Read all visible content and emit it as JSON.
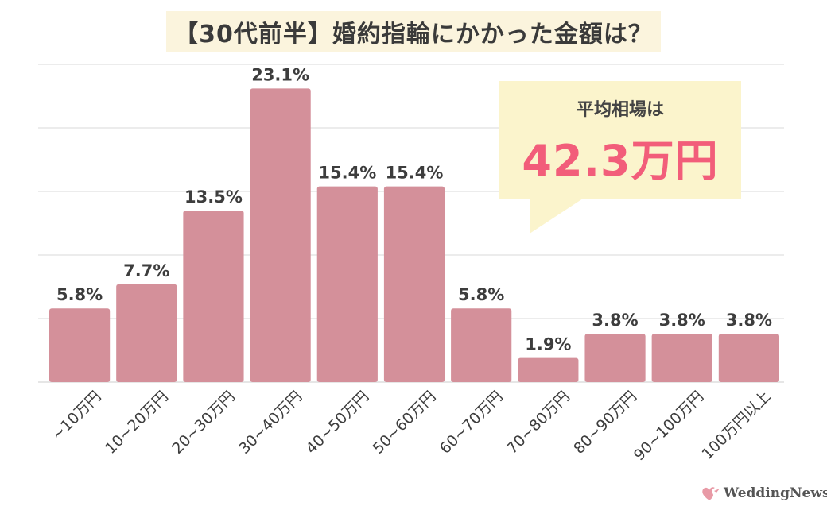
{
  "header": {
    "title": "【30代前半】婚約指輪にかかった金額は？"
  },
  "callout": {
    "label": "平均相場は",
    "value": "42.3万円"
  },
  "brand": {
    "name": "WeddingNews"
  },
  "colors": {
    "bar": "#d4909a",
    "grid": "#e6e6e6",
    "accent": "#f25d7a",
    "callout_bg": "#fbf4cc"
  },
  "chart_data": {
    "type": "bar",
    "title": "【30代前半】婚約指輪にかかった金額は？",
    "categories": [
      "~10万円",
      "10~20万円",
      "20~30万円",
      "30~40万円",
      "40~50万円",
      "50~60万円",
      "60~70万円",
      "70~80万円",
      "80~90万円",
      "90~100万円",
      "100万円以上"
    ],
    "values": [
      5.8,
      7.7,
      13.5,
      23.1,
      15.4,
      15.4,
      5.8,
      1.9,
      3.8,
      3.8,
      3.8
    ],
    "value_labels": [
      "5.8%",
      "7.7%",
      "13.5%",
      "23.1%",
      "15.4%",
      "15.4%",
      "5.8%",
      "1.9%",
      "3.8%",
      "3.8%",
      "3.8%"
    ],
    "ylim": [
      0,
      25
    ],
    "grid": true,
    "xlabel": "",
    "ylabel": ""
  }
}
